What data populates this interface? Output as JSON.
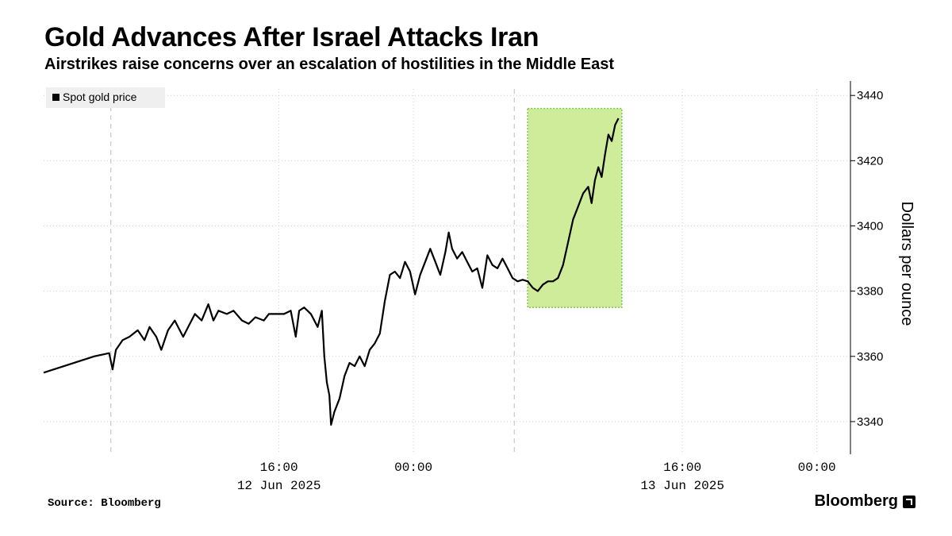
{
  "header": {
    "title": "Gold Advances After Israel Attacks Iran",
    "subtitle": "Airstrikes raise concerns over an escalation of hostilities in the Middle East"
  },
  "footer": {
    "source": "Source: Bloomberg",
    "brand": "Bloomberg"
  },
  "colors": {
    "line": "#000000",
    "highlight_fill": "#c9eb8f",
    "highlight_stroke": "#6cc23a",
    "grid": "#cfcfcf"
  },
  "chart_data": {
    "type": "line",
    "title": "Gold Advances After Israel Attacks Iran",
    "subtitle": "Airstrikes raise concerns over an escalation of hostilities in the Middle East",
    "ylabel": "Dollars per ounce",
    "ylim": [
      3330,
      3442
    ],
    "yticks": [
      3340,
      3360,
      3380,
      3400,
      3420,
      3440
    ],
    "y_axis_side": "right",
    "xlim": [
      -4,
      44
    ],
    "x_unit": "hours since 12 Jun 2025 06:00",
    "xticks": [
      {
        "x": 10,
        "time": "16:00",
        "date": "12 Jun 2025"
      },
      {
        "x": 18,
        "time": "00:00",
        "date": ""
      },
      {
        "x": 34,
        "time": "16:00",
        "date": "13 Jun 2025"
      },
      {
        "x": 42,
        "time": "00:00",
        "date": ""
      }
    ],
    "session_lines_x": [
      0,
      24
    ],
    "highlight": {
      "x": [
        24.8,
        30.4
      ],
      "y": [
        3375,
        3436
      ]
    },
    "grid": true,
    "legend": {
      "position": "top-left",
      "entries": [
        "Spot gold price"
      ]
    },
    "series": [
      {
        "name": "Spot gold price",
        "points": [
          [
            -4.0,
            3355
          ],
          [
            -2.5,
            3357.5
          ],
          [
            -1.0,
            3360
          ],
          [
            -0.1,
            3361
          ],
          [
            0.1,
            3356
          ],
          [
            0.3,
            3362
          ],
          [
            0.7,
            3365
          ],
          [
            1.1,
            3366
          ],
          [
            1.6,
            3368
          ],
          [
            2.0,
            3365
          ],
          [
            2.3,
            3369
          ],
          [
            2.7,
            3366
          ],
          [
            3.0,
            3362
          ],
          [
            3.4,
            3368
          ],
          [
            3.8,
            3371
          ],
          [
            4.1,
            3368
          ],
          [
            4.3,
            3366
          ],
          [
            4.6,
            3369
          ],
          [
            5.0,
            3373
          ],
          [
            5.4,
            3371
          ],
          [
            5.8,
            3376
          ],
          [
            6.1,
            3371
          ],
          [
            6.4,
            3374
          ],
          [
            6.9,
            3373
          ],
          [
            7.3,
            3374
          ],
          [
            7.8,
            3371
          ],
          [
            8.2,
            3370
          ],
          [
            8.6,
            3372
          ],
          [
            9.1,
            3371
          ],
          [
            9.4,
            3373
          ],
          [
            9.8,
            3373
          ],
          [
            10.3,
            3373
          ],
          [
            10.7,
            3374
          ],
          [
            11.0,
            3366
          ],
          [
            11.2,
            3374
          ],
          [
            11.5,
            3375
          ],
          [
            11.9,
            3373
          ],
          [
            12.3,
            3369
          ],
          [
            12.55,
            3374
          ],
          [
            12.7,
            3360
          ],
          [
            12.85,
            3352
          ],
          [
            13.0,
            3348
          ],
          [
            13.1,
            3339
          ],
          [
            13.3,
            3343
          ],
          [
            13.6,
            3347
          ],
          [
            13.9,
            3354
          ],
          [
            14.2,
            3358
          ],
          [
            14.5,
            3357
          ],
          [
            14.8,
            3360
          ],
          [
            15.1,
            3357
          ],
          [
            15.4,
            3362
          ],
          [
            15.7,
            3364
          ],
          [
            16.0,
            3367
          ],
          [
            16.3,
            3377
          ],
          [
            16.6,
            3385
          ],
          [
            16.9,
            3386
          ],
          [
            17.2,
            3384
          ],
          [
            17.5,
            3389
          ],
          [
            17.8,
            3386
          ],
          [
            18.1,
            3379
          ],
          [
            18.4,
            3385
          ],
          [
            18.7,
            3389
          ],
          [
            19.0,
            3393
          ],
          [
            19.3,
            3389
          ],
          [
            19.6,
            3385
          ],
          [
            19.9,
            3392
          ],
          [
            20.1,
            3398
          ],
          [
            20.3,
            3393
          ],
          [
            20.6,
            3390
          ],
          [
            20.9,
            3392
          ],
          [
            21.2,
            3389
          ],
          [
            21.5,
            3386
          ],
          [
            21.8,
            3387
          ],
          [
            22.1,
            3381
          ],
          [
            22.4,
            3391
          ],
          [
            22.7,
            3388
          ],
          [
            23.0,
            3387
          ],
          [
            23.3,
            3390
          ],
          [
            23.6,
            3387
          ],
          [
            23.9,
            3384
          ],
          [
            24.2,
            3383
          ],
          [
            24.5,
            3383.5
          ],
          [
            24.8,
            3383
          ],
          [
            25.1,
            3381
          ],
          [
            25.4,
            3380
          ],
          [
            25.7,
            3382
          ],
          [
            26.0,
            3383
          ],
          [
            26.3,
            3383
          ],
          [
            26.6,
            3384
          ],
          [
            26.9,
            3388
          ],
          [
            27.2,
            3395
          ],
          [
            27.5,
            3402
          ],
          [
            27.8,
            3406
          ],
          [
            28.1,
            3410
          ],
          [
            28.4,
            3412
          ],
          [
            28.6,
            3407
          ],
          [
            28.8,
            3414
          ],
          [
            29.0,
            3418
          ],
          [
            29.2,
            3415
          ],
          [
            29.4,
            3422
          ],
          [
            29.6,
            3428
          ],
          [
            29.8,
            3426
          ],
          [
            30.0,
            3431
          ],
          [
            30.2,
            3433
          ]
        ]
      }
    ]
  }
}
